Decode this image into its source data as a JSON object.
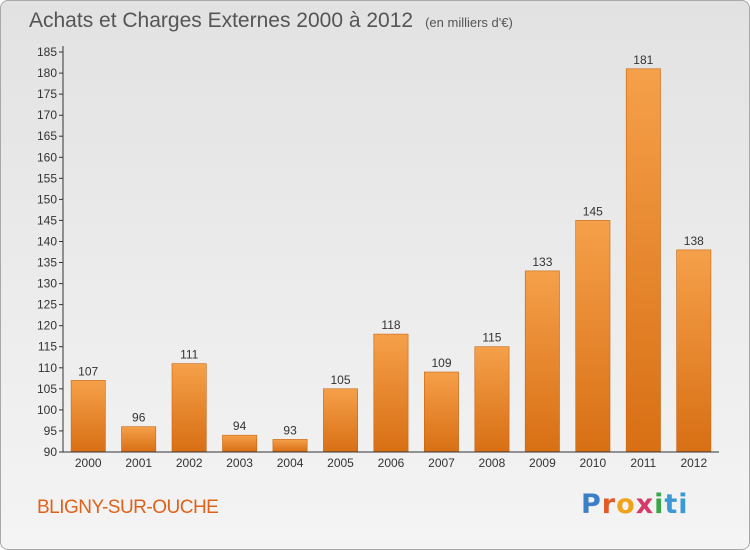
{
  "header": {
    "title": "Achats et Charges Externes 2000 à 2012",
    "unit": "(en milliers d'€)"
  },
  "footer": {
    "commune": "BLIGNY-SUR-OUCHE",
    "brand": [
      "P",
      "r",
      "o",
      "x",
      "i",
      "ti"
    ]
  },
  "colors": {
    "bar_light": "#f5a04a",
    "bar_dark": "#d86f14",
    "commune_text": "#e0611a"
  },
  "chart_data": {
    "type": "bar",
    "title": "Achats et Charges Externes 2000 à 2012",
    "subtitle": "(en milliers d'€)",
    "categories": [
      "2000",
      "2001",
      "2002",
      "2003",
      "2004",
      "2005",
      "2006",
      "2007",
      "2008",
      "2009",
      "2010",
      "2011",
      "2012"
    ],
    "values": [
      107,
      96,
      111,
      94,
      93,
      105,
      118,
      109,
      115,
      133,
      145,
      181,
      138
    ],
    "ylim": [
      90,
      185
    ],
    "yticks": [
      90,
      95,
      100,
      105,
      110,
      115,
      120,
      125,
      130,
      135,
      140,
      145,
      150,
      155,
      160,
      165,
      170,
      175,
      180,
      185
    ],
    "grid": false,
    "legend": "none"
  }
}
